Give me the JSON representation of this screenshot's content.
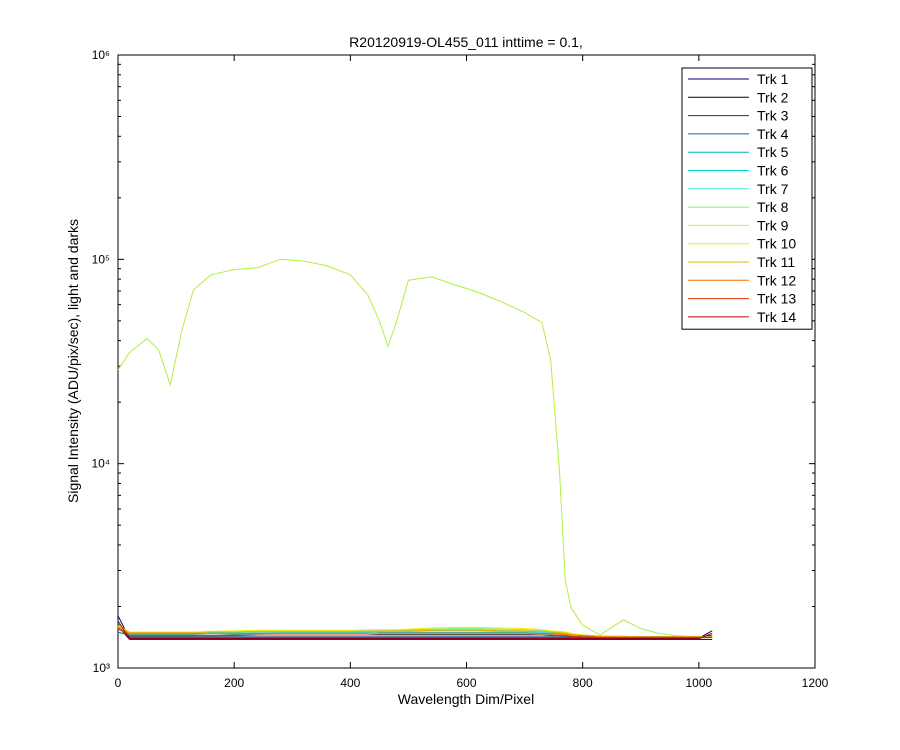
{
  "chart_data": {
    "type": "line",
    "title": "R20120919-OL455_011 inttime = 0.1,",
    "xlabel": "Wavelength Dim/Pixel",
    "ylabel": "Signal Intensity (ADU/pix/sec), light and darks",
    "x": [
      0,
      20,
      50,
      70,
      90,
      110,
      130,
      160,
      200,
      240,
      280,
      320,
      360,
      400,
      430,
      450,
      465,
      480,
      500,
      540,
      580,
      620,
      660,
      700,
      730,
      745,
      760,
      770,
      780,
      800,
      830,
      870,
      900,
      930,
      960,
      1000,
      1023
    ],
    "xlim": [
      0,
      1200
    ],
    "xticks": [
      0,
      200,
      400,
      600,
      800,
      1000,
      1200
    ],
    "ylim": [
      1000,
      1000000
    ],
    "ylog": true,
    "yticks": [
      {
        "value": 1000,
        "label": "10³"
      },
      {
        "value": 10000,
        "label": "10⁴"
      },
      {
        "value": 100000,
        "label": "10⁵"
      },
      {
        "value": 1000000,
        "label": "10⁶"
      }
    ],
    "yminorticks": [
      2000,
      3000,
      4000,
      5000,
      6000,
      7000,
      8000,
      9000,
      20000,
      30000,
      40000,
      50000,
      60000,
      70000,
      80000,
      90000,
      200000,
      300000,
      400000,
      500000,
      600000,
      700000,
      800000,
      900000
    ],
    "legend": "top-right",
    "series": [
      {
        "name": "Trk 1",
        "color": "#00007f",
        "values": [
          1800,
          1400,
          1400,
          1400,
          1400,
          1400,
          1400,
          1400,
          1400,
          1400,
          1400,
          1400,
          1400,
          1400,
          1400,
          1400,
          1400,
          1400,
          1400,
          1400,
          1400,
          1400,
          1400,
          1400,
          1400,
          1400,
          1400,
          1400,
          1400,
          1400,
          1400,
          1400,
          1400,
          1400,
          1400,
          1400,
          1520
        ]
      },
      {
        "name": "Trk 2",
        "color": "#00001a",
        "values": [
          1600,
          1380,
          1380,
          1380,
          1380,
          1380,
          1380,
          1380,
          1380,
          1380,
          1380,
          1380,
          1380,
          1380,
          1380,
          1380,
          1380,
          1380,
          1380,
          1380,
          1380,
          1380,
          1380,
          1380,
          1380,
          1380,
          1380,
          1380,
          1380,
          1380,
          1380,
          1380,
          1380,
          1380,
          1380,
          1380,
          1380
        ]
      },
      {
        "name": "Trk 3",
        "color": "#004080",
        "values": [
          1650,
          1420,
          1420,
          1420,
          1420,
          1420,
          1420,
          1420,
          1420,
          1420,
          1420,
          1420,
          1420,
          1420,
          1420,
          1420,
          1420,
          1420,
          1420,
          1420,
          1420,
          1420,
          1420,
          1420,
          1420,
          1420,
          1420,
          1420,
          1420,
          1420,
          1410,
          1410,
          1410,
          1410,
          1410,
          1410,
          1450
        ]
      },
      {
        "name": "Trk 4",
        "color": "#00708f",
        "values": [
          1500,
          1440,
          1440,
          1440,
          1440,
          1440,
          1440,
          1440,
          1450,
          1450,
          1450,
          1450,
          1450,
          1450,
          1450,
          1460,
          1460,
          1460,
          1460,
          1460,
          1460,
          1460,
          1460,
          1460,
          1450,
          1450,
          1440,
          1440,
          1430,
          1420,
          1420,
          1420,
          1420,
          1420,
          1420,
          1420,
          1420
        ]
      },
      {
        "name": "Trk 5",
        "color": "#00b0c0",
        "values": [
          1550,
          1460,
          1460,
          1460,
          1460,
          1460,
          1460,
          1470,
          1470,
          1470,
          1480,
          1480,
          1480,
          1480,
          1480,
          1490,
          1490,
          1490,
          1490,
          1490,
          1490,
          1490,
          1490,
          1490,
          1480,
          1480,
          1470,
          1470,
          1460,
          1450,
          1430,
          1420,
          1420,
          1420,
          1420,
          1420,
          1420
        ]
      },
      {
        "name": "Trk 6",
        "color": "#00e0e0",
        "values": [
          1560,
          1480,
          1480,
          1480,
          1480,
          1480,
          1480,
          1490,
          1490,
          1500,
          1500,
          1500,
          1500,
          1500,
          1500,
          1510,
          1510,
          1510,
          1510,
          1520,
          1520,
          1520,
          1510,
          1510,
          1500,
          1490,
          1480,
          1470,
          1460,
          1450,
          1430,
          1420,
          1420,
          1420,
          1420,
          1420,
          1420
        ]
      },
      {
        "name": "Trk 7",
        "color": "#40f0d0",
        "values": [
          1580,
          1490,
          1490,
          1490,
          1490,
          1490,
          1490,
          1500,
          1500,
          1510,
          1510,
          1510,
          1510,
          1510,
          1520,
          1520,
          1520,
          1520,
          1530,
          1540,
          1540,
          1540,
          1530,
          1520,
          1510,
          1500,
          1490,
          1480,
          1460,
          1450,
          1430,
          1420,
          1420,
          1420,
          1420,
          1420,
          1420
        ]
      },
      {
        "name": "Trk 8",
        "color": "#80f080",
        "values": [
          1600,
          1480,
          1480,
          1480,
          1480,
          1490,
          1490,
          1500,
          1500,
          1510,
          1510,
          1510,
          1510,
          1510,
          1520,
          1520,
          1520,
          1530,
          1540,
          1550,
          1560,
          1560,
          1550,
          1540,
          1530,
          1510,
          1500,
          1490,
          1470,
          1450,
          1430,
          1430,
          1420,
          1420,
          1420,
          1420,
          1420
        ]
      },
      {
        "name": "Trk 9",
        "color": "#b0f040",
        "values": [
          28800,
          35000,
          41000,
          36000,
          24300,
          45000,
          71000,
          84000,
          89000,
          91000,
          100000,
          98000,
          93000,
          84000,
          67000,
          50000,
          37500,
          50000,
          79000,
          82000,
          75000,
          69000,
          62000,
          55000,
          49000,
          32000,
          9300,
          2700,
          1970,
          1620,
          1450,
          1720,
          1560,
          1480,
          1440,
          1420,
          1420
        ]
      },
      {
        "name": "Trk 10",
        "color": "#f0f000",
        "values": [
          1620,
          1500,
          1500,
          1500,
          1500,
          1500,
          1500,
          1510,
          1520,
          1530,
          1530,
          1530,
          1530,
          1530,
          1540,
          1540,
          1540,
          1540,
          1550,
          1570,
          1580,
          1580,
          1570,
          1560,
          1540,
          1520,
          1510,
          1500,
          1480,
          1450,
          1430,
          1430,
          1420,
          1420,
          1420,
          1420,
          1420
        ]
      },
      {
        "name": "Trk 11",
        "color": "#f0b000",
        "values": [
          1600,
          1490,
          1490,
          1490,
          1490,
          1490,
          1490,
          1500,
          1500,
          1510,
          1510,
          1510,
          1510,
          1510,
          1510,
          1520,
          1520,
          1520,
          1520,
          1530,
          1530,
          1530,
          1520,
          1520,
          1510,
          1500,
          1490,
          1480,
          1460,
          1440,
          1430,
          1420,
          1420,
          1420,
          1420,
          1420,
          1420
        ]
      },
      {
        "name": "Trk 12",
        "color": "#f07000",
        "values": [
          1580,
          1470,
          1470,
          1470,
          1470,
          1470,
          1470,
          1470,
          1470,
          1480,
          1480,
          1480,
          1480,
          1480,
          1480,
          1480,
          1480,
          1480,
          1480,
          1480,
          1480,
          1480,
          1480,
          1480,
          1470,
          1470,
          1460,
          1460,
          1450,
          1440,
          1420,
          1420,
          1420,
          1420,
          1420,
          1420,
          1420
        ]
      },
      {
        "name": "Trk 13",
        "color": "#e03000",
        "values": [
          1560,
          1440,
          1440,
          1440,
          1440,
          1440,
          1440,
          1440,
          1440,
          1450,
          1450,
          1450,
          1450,
          1450,
          1450,
          1450,
          1450,
          1450,
          1450,
          1450,
          1450,
          1450,
          1450,
          1450,
          1450,
          1440,
          1440,
          1440,
          1430,
          1420,
          1410,
          1410,
          1410,
          1410,
          1410,
          1410,
          1410
        ]
      },
      {
        "name": "Trk 14",
        "color": "#c00000",
        "values": [
          1700,
          1390,
          1390,
          1390,
          1390,
          1390,
          1390,
          1390,
          1390,
          1390,
          1390,
          1390,
          1390,
          1390,
          1390,
          1390,
          1390,
          1390,
          1390,
          1390,
          1390,
          1390,
          1390,
          1390,
          1390,
          1390,
          1390,
          1390,
          1390,
          1390,
          1390,
          1390,
          1390,
          1390,
          1390,
          1390,
          1480
        ]
      }
    ]
  }
}
